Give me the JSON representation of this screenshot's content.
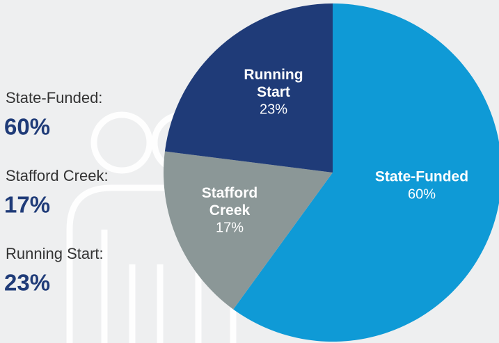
{
  "chart_data": {
    "type": "pie",
    "categories": [
      "State-Funded",
      "Stafford Creek",
      "Running Start"
    ],
    "values": [
      60,
      17,
      23
    ],
    "value_labels": [
      "60%",
      "17%",
      "23%"
    ],
    "legend_labels": [
      "State-Funded:",
      "Stafford Creek:",
      "Running Start:"
    ],
    "colors": [
      "#0f9ad6",
      "#8b9797",
      "#1f3b78"
    ]
  }
}
